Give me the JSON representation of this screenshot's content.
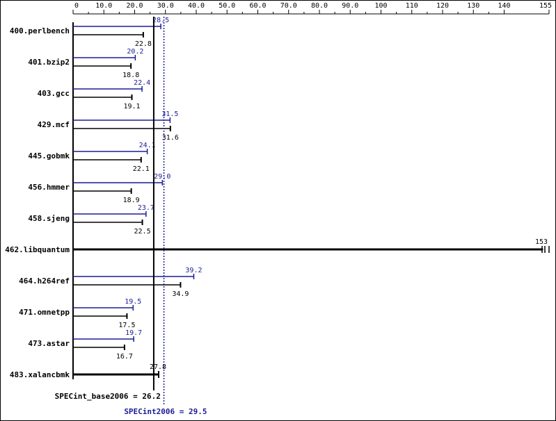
{
  "colors": {
    "background": "#ffffff",
    "base": "#000000",
    "peak": "#1c1c96",
    "border": "#000000"
  },
  "chart_data": {
    "type": "bar",
    "orientation": "horizontal",
    "grid": false,
    "xaxis": {
      "ticks": [
        0,
        10,
        20,
        30,
        40,
        50,
        60,
        70,
        80,
        90,
        100,
        110,
        120,
        130,
        140,
        155
      ],
      "tick_labels": [
        "0",
        "10.0",
        "20.0",
        "30.0",
        "40.0",
        "50.0",
        "60.0",
        "70.0",
        "80.0",
        "90.0",
        "100",
        "110",
        "120",
        "130",
        "140",
        "155"
      ],
      "range": [
        0,
        155
      ]
    },
    "categories": [
      "400.perlbench",
      "401.bzip2",
      "403.gcc",
      "429.mcf",
      "445.gobmk",
      "456.hmmer",
      "458.sjeng",
      "462.libquantum",
      "464.h264ref",
      "471.omnetpp",
      "473.astar",
      "483.xalancbmk"
    ],
    "series": [
      {
        "key": "peak",
        "values": [
          28.5,
          20.2,
          22.4,
          31.5,
          24.1,
          29.0,
          23.7,
          null,
          39.2,
          19.5,
          19.7,
          null
        ],
        "labels": [
          "28.5",
          "20.2",
          "22.4",
          "31.5",
          "24.1",
          "29.0",
          "23.7",
          "",
          "39.2",
          "19.5",
          "19.7",
          ""
        ]
      },
      {
        "key": "base",
        "values": [
          22.8,
          18.8,
          19.1,
          31.6,
          22.1,
          18.9,
          22.5,
          153,
          34.9,
          17.5,
          16.7,
          27.8
        ],
        "labels": [
          "22.8",
          "18.8",
          "19.1",
          "31.6",
          "22.1",
          "18.9",
          "22.5",
          "153",
          "34.9",
          "17.5",
          "16.7",
          "27.8"
        ]
      }
    ],
    "reference_lines": [
      {
        "key": "base",
        "value": 26.2,
        "label": "SPECint_base2006 = 26.2"
      },
      {
        "key": "peak",
        "value": 29.5,
        "label": "SPECint2006 = 29.5"
      }
    ]
  }
}
